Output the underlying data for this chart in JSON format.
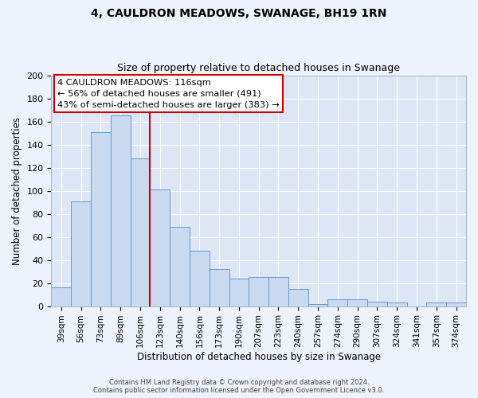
{
  "title": "4, CAULDRON MEADOWS, SWANAGE, BH19 1RN",
  "subtitle": "Size of property relative to detached houses in Swanage",
  "xlabel": "Distribution of detached houses by size in Swanage",
  "ylabel": "Number of detached properties",
  "bar_labels": [
    "39sqm",
    "56sqm",
    "73sqm",
    "89sqm",
    "106sqm",
    "123sqm",
    "140sqm",
    "156sqm",
    "173sqm",
    "190sqm",
    "207sqm",
    "223sqm",
    "240sqm",
    "257sqm",
    "274sqm",
    "290sqm",
    "307sqm",
    "324sqm",
    "341sqm",
    "357sqm",
    "374sqm"
  ],
  "bar_values": [
    16,
    91,
    151,
    165,
    128,
    101,
    69,
    48,
    32,
    24,
    25,
    25,
    15,
    2,
    6,
    6,
    4,
    3,
    0,
    3,
    3
  ],
  "bar_color": "#c9d9f0",
  "bar_edge_color": "#6699cc",
  "vline_color": "#cc0000",
  "annotation_title": "4 CAULDRON MEADOWS: 116sqm",
  "annotation_line1": "← 56% of detached houses are smaller (491)",
  "annotation_line2": "43% of semi-detached houses are larger (383) →",
  "annotation_box_color": "#cc0000",
  "ylim": [
    0,
    200
  ],
  "yticks": [
    0,
    20,
    40,
    60,
    80,
    100,
    120,
    140,
    160,
    180,
    200
  ],
  "fig_bg_color": "#eef2fa",
  "plot_bg_color": "#dce6f5",
  "footer_line1": "Contains HM Land Registry data © Crown copyright and database right 2024.",
  "footer_line2": "Contains public sector information licensed under the Open Government Licence v3.0."
}
